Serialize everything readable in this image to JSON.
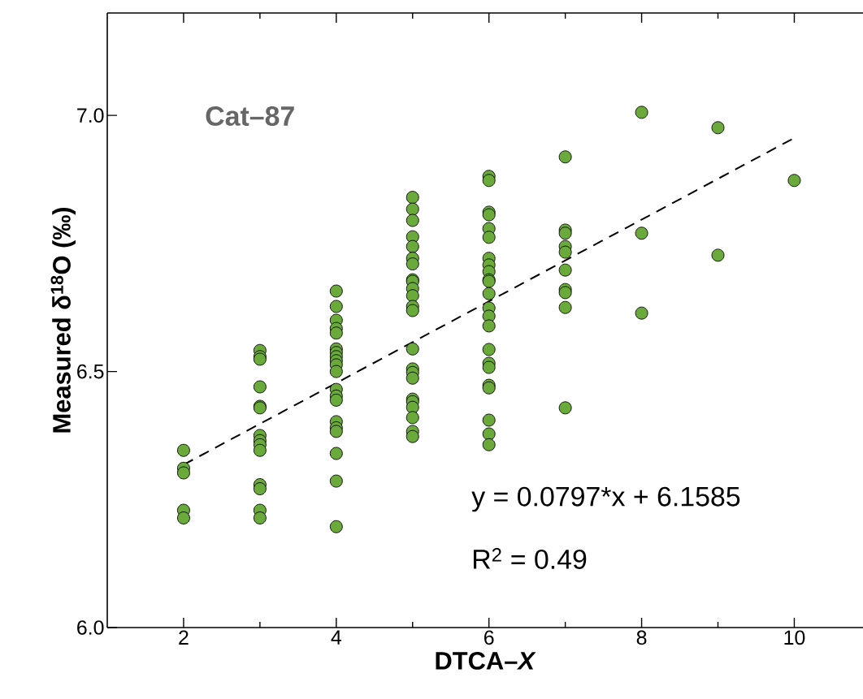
{
  "chart_data": {
    "type": "scatter",
    "xlabel": "DTCA–*X*",
    "ylabel": "Measured δ$^{18}$O (‰)",
    "annotations": [
      "Cat–87",
      "y = 0.0797*x + 6.1585",
      "R$^{2}$ = 0.49"
    ],
    "xlim": [
      1,
      10.9
    ],
    "ylim": [
      6,
      7.2
    ],
    "xticks": [
      2,
      {
        "value": 3,
        "label": null
      },
      4,
      {
        "value": 5,
        "label": null
      },
      6,
      {
        "value": 7,
        "label": null
      },
      8,
      {
        "value": 9,
        "label": null
      },
      10
    ],
    "yticks": [
      {
        "value": 6,
        "label": "6.0"
      },
      {
        "value": 6.5,
        "label": "6.5"
      },
      {
        "value": 7,
        "label": "7.0"
      }
    ],
    "series": [
      {
        "color": "#6aaa3a",
        "marker": "circle",
        "x": [
          2,
          2,
          2,
          2,
          2,
          3,
          3,
          3,
          3,
          3,
          3,
          3,
          3,
          3,
          3,
          3,
          3,
          3,
          3,
          4,
          4,
          4,
          4,
          4,
          4,
          4,
          4,
          4,
          4,
          4,
          4,
          4,
          4,
          4,
          4,
          4,
          4,
          4,
          4,
          5,
          5,
          5,
          5,
          5,
          5,
          5,
          5,
          5,
          5,
          5,
          5,
          5,
          5,
          5,
          5,
          5,
          5,
          5,
          5,
          5,
          5,
          5,
          6,
          6,
          6,
          6,
          6,
          6,
          6,
          6,
          6,
          6,
          6,
          6,
          6,
          6,
          6,
          6,
          6,
          6,
          6,
          6,
          6,
          6,
          6,
          7,
          7,
          7,
          7,
          7,
          7,
          7,
          7,
          7,
          7,
          8,
          8,
          8,
          9,
          9,
          10
        ],
        "values": [
          6.346,
          6.311,
          6.302,
          6.229,
          6.214,
          6.541,
          6.529,
          6.524,
          6.47,
          6.432,
          6.429,
          6.375,
          6.365,
          6.357,
          6.346,
          6.279,
          6.271,
          6.229,
          6.214,
          6.657,
          6.627,
          6.6,
          6.584,
          6.575,
          6.544,
          6.537,
          6.529,
          6.521,
          6.513,
          6.5,
          6.465,
          6.452,
          6.444,
          6.402,
          6.39,
          6.383,
          6.34,
          6.286,
          6.197,
          6.84,
          6.817,
          6.795,
          6.763,
          6.744,
          6.721,
          6.71,
          6.679,
          6.676,
          6.662,
          6.648,
          6.627,
          6.619,
          6.544,
          6.505,
          6.498,
          6.487,
          6.446,
          6.441,
          6.43,
          6.41,
          6.383,
          6.373,
          6.881,
          6.873,
          6.811,
          6.806,
          6.779,
          6.762,
          6.721,
          6.708,
          6.695,
          6.679,
          6.676,
          6.652,
          6.624,
          6.608,
          6.589,
          6.543,
          6.516,
          6.508,
          6.473,
          6.468,
          6.405,
          6.378,
          6.357,
          6.919,
          6.776,
          6.77,
          6.744,
          6.733,
          6.698,
          6.66,
          6.654,
          6.625,
          6.429,
          7.006,
          6.77,
          6.614,
          6.976,
          6.727,
          6.873
        ]
      },
      {
        "type": "line",
        "color": "#000000",
        "line_style": "dashed",
        "marker": "none",
        "x": [
          2,
          10
        ],
        "values": [
          6.318,
          6.956
        ]
      }
    ]
  }
}
